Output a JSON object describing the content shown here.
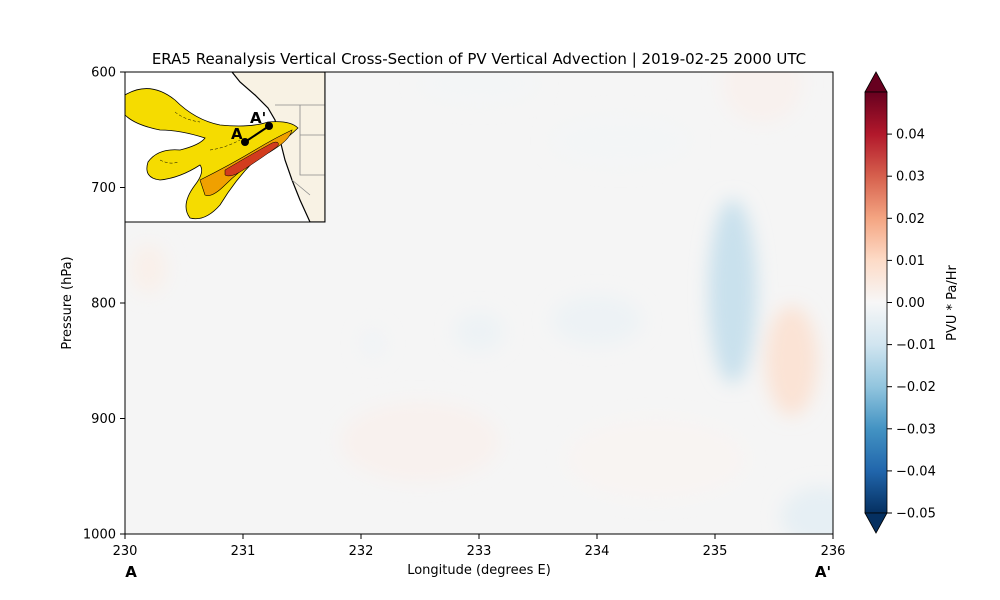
{
  "chart_data": {
    "type": "heatmap",
    "title": "ERA5 Reanalysis Vertical Cross-Section of PV Vertical Advection | 2019-02-25 2000 UTC",
    "xlabel": "Longitude (degrees E)",
    "ylabel": "Pressure (hPa)",
    "xlim": [
      230,
      236
    ],
    "ylim": [
      1000,
      600
    ],
    "x_ticks": [
      230,
      231,
      232,
      233,
      234,
      235,
      236
    ],
    "y_ticks": [
      600,
      700,
      800,
      900,
      1000
    ],
    "start_label": "A",
    "end_label": "A'",
    "colorbar": {
      "label": "PVU * Pa/Hr",
      "min": -0.05,
      "max": 0.05,
      "ticks": [
        0.04,
        0.03,
        0.02,
        0.01,
        0.0,
        -0.01,
        -0.02,
        -0.03,
        -0.04,
        -0.05
      ],
      "tick_labels": [
        "0.04",
        "0.03",
        "0.02",
        "0.01",
        "0.00",
        "−0.01",
        "−0.02",
        "−0.03",
        "−0.04",
        "−0.05"
      ],
      "colormap": "RdBu_r",
      "extend": "both"
    },
    "features": [
      {
        "lon": 235.15,
        "p": 790,
        "value": -0.012
      },
      {
        "lon": 235.65,
        "p": 850,
        "value": 0.008
      },
      {
        "lon": 235.9,
        "p": 985,
        "value": -0.005
      },
      {
        "lon": 233.0,
        "p": 825,
        "value": -0.003
      },
      {
        "lon": 234.0,
        "p": 815,
        "value": -0.003
      },
      {
        "lon": 232.1,
        "p": 835,
        "value": -0.002
      },
      {
        "lon": 230.2,
        "p": 770,
        "value": 0.003
      },
      {
        "lon": 232.5,
        "p": 920,
        "value": 0.002
      },
      {
        "lon": 234.5,
        "p": 935,
        "value": 0.001
      },
      {
        "lon": 233.0,
        "p": 610,
        "value": -0.001
      },
      {
        "lon": 235.4,
        "p": 610,
        "value": 0.002
      },
      {
        "lon": 234.2,
        "p": 660,
        "value": -0.001
      }
    ],
    "inset_map": {
      "labels": [
        "A",
        "A'"
      ]
    }
  }
}
